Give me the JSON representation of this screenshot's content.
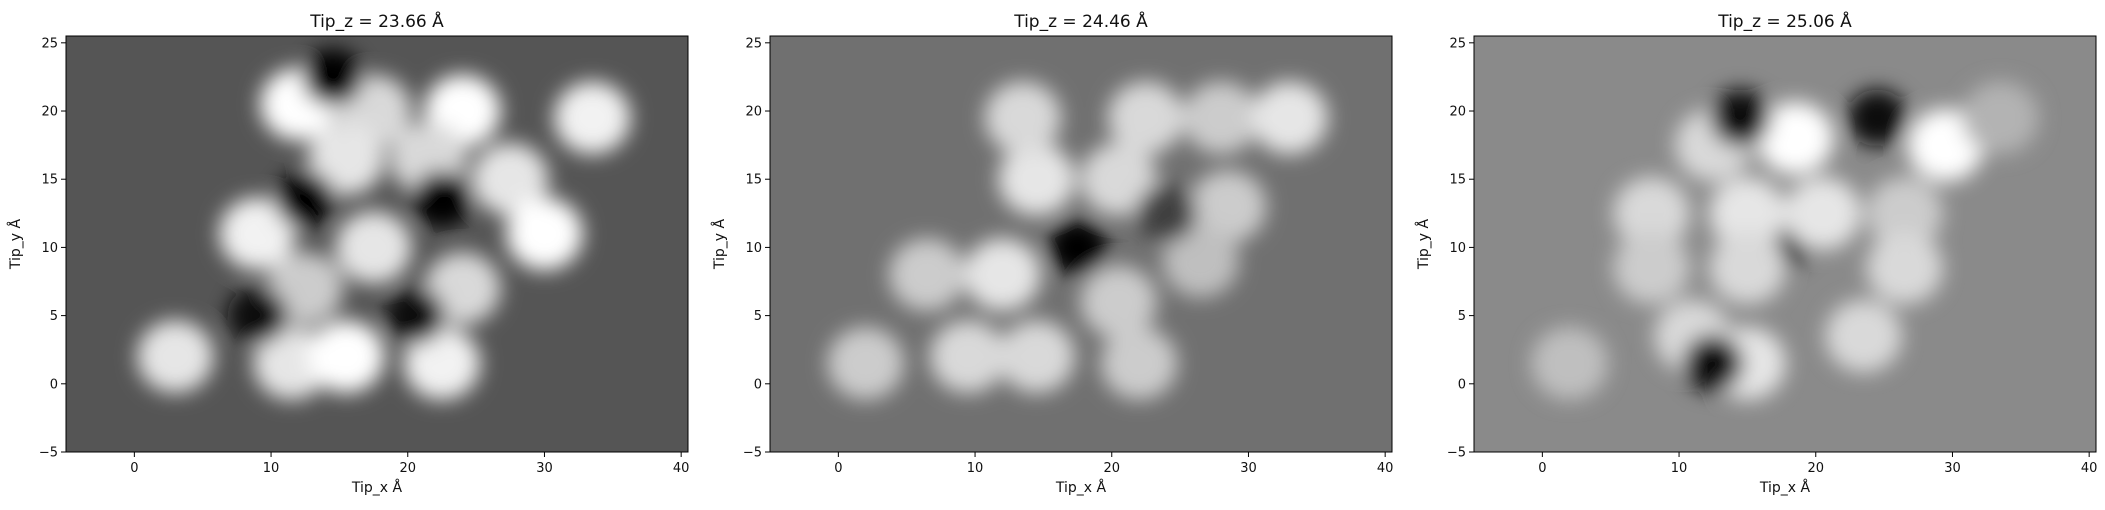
{
  "chart_data": [
    {
      "type": "heatmap",
      "title": "Tip_z = 23.66 Å",
      "xlabel": "Tip_x Å",
      "ylabel": "Tip_y Å",
      "xlim": [
        -5,
        40.5
      ],
      "ylim": [
        -5,
        25.5
      ],
      "xticks": [
        0,
        10,
        20,
        30,
        40
      ],
      "yticks": [
        -5,
        0,
        5,
        10,
        15,
        20,
        25
      ],
      "colormap": "gray",
      "background": "#555555",
      "grid": false,
      "features": [
        {
          "x": 12.0,
          "y": 20.5,
          "shade": 1.0
        },
        {
          "x": 17.5,
          "y": 20.0,
          "shade": 0.85
        },
        {
          "x": 24.0,
          "y": 20.0,
          "shade": 1.0
        },
        {
          "x": 33.5,
          "y": 19.5,
          "shade": 0.95
        },
        {
          "x": 15.5,
          "y": 16.5,
          "shade": 0.9
        },
        {
          "x": 21.5,
          "y": 16.5,
          "shade": 0.85
        },
        {
          "x": 27.5,
          "y": 15.0,
          "shade": 0.9
        },
        {
          "x": 9.0,
          "y": 11.0,
          "shade": 0.95
        },
        {
          "x": 17.5,
          "y": 10.0,
          "shade": 0.9
        },
        {
          "x": 30.0,
          "y": 11.0,
          "shade": 1.0
        },
        {
          "x": 12.5,
          "y": 7.0,
          "shade": 0.8
        },
        {
          "x": 24.0,
          "y": 7.0,
          "shade": 0.85
        },
        {
          "x": 3.0,
          "y": 2.0,
          "shade": 0.9
        },
        {
          "x": 11.5,
          "y": 1.5,
          "shade": 0.9
        },
        {
          "x": 15.5,
          "y": 2.0,
          "shade": 1.0
        },
        {
          "x": 22.5,
          "y": 1.5,
          "shade": 0.95
        },
        {
          "x": 12.5,
          "y": 13.5,
          "shade": 0.0
        },
        {
          "x": 22.5,
          "y": 13.5,
          "shade": 0.0
        },
        {
          "x": 14.5,
          "y": 22.5,
          "shade": 0.0
        },
        {
          "x": 9.0,
          "y": 5.0,
          "shade": 0.05
        },
        {
          "x": 20.5,
          "y": 5.0,
          "shade": 0.05
        }
      ]
    },
    {
      "type": "heatmap",
      "title": "Tip_z = 24.46 Å",
      "xlabel": "Tip_x Å",
      "ylabel": "Tip_y Å",
      "xlim": [
        -5,
        40.5
      ],
      "ylim": [
        -5,
        25.5
      ],
      "xticks": [
        0,
        10,
        20,
        30,
        40
      ],
      "yticks": [
        -5,
        0,
        5,
        10,
        15,
        20,
        25
      ],
      "colormap": "gray",
      "background": "#707070",
      "grid": false,
      "features": [
        {
          "x": 17.5,
          "y": 10.0,
          "shade": 0.0
        },
        {
          "x": 14.5,
          "y": 15.0,
          "shade": 0.9
        },
        {
          "x": 20.5,
          "y": 15.0,
          "shade": 0.85
        },
        {
          "x": 12.0,
          "y": 8.0,
          "shade": 0.9
        },
        {
          "x": 20.5,
          "y": 6.0,
          "shade": 0.8
        },
        {
          "x": 13.5,
          "y": 19.5,
          "shade": 0.85
        },
        {
          "x": 22.5,
          "y": 19.5,
          "shade": 0.85
        },
        {
          "x": 28.0,
          "y": 19.5,
          "shade": 0.8
        },
        {
          "x": 33.0,
          "y": 19.5,
          "shade": 0.9
        },
        {
          "x": 28.5,
          "y": 13.0,
          "shade": 0.8
        },
        {
          "x": 26.5,
          "y": 9.0,
          "shade": 0.75
        },
        {
          "x": 6.5,
          "y": 8.0,
          "shade": 0.8
        },
        {
          "x": 2.0,
          "y": 1.5,
          "shade": 0.8
        },
        {
          "x": 9.5,
          "y": 2.0,
          "shade": 0.85
        },
        {
          "x": 14.5,
          "y": 2.0,
          "shade": 0.85
        },
        {
          "x": 22.0,
          "y": 1.5,
          "shade": 0.8
        },
        {
          "x": 24.0,
          "y": 12.5,
          "shade": 0.25
        }
      ]
    },
    {
      "type": "heatmap",
      "title": "Tip_z = 25.06 Å",
      "xlabel": "Tip_x Å",
      "ylabel": "Tip_y Å",
      "xlim": [
        -5,
        40.5
      ],
      "ylim": [
        -5,
        25.5
      ],
      "xticks": [
        0,
        10,
        20,
        30,
        40
      ],
      "yticks": [
        -5,
        0,
        5,
        10,
        15,
        20,
        25
      ],
      "colormap": "gray",
      "background": "#8a8a8a",
      "grid": false,
      "features": [
        {
          "x": 17.5,
          "y": 10.5,
          "shade": 0.0
        },
        {
          "x": 18.5,
          "y": 18.0,
          "shade": 1.0
        },
        {
          "x": 29.5,
          "y": 17.5,
          "shade": 1.0
        },
        {
          "x": 12.5,
          "y": 17.5,
          "shade": 0.85
        },
        {
          "x": 15.0,
          "y": 12.5,
          "shade": 0.9
        },
        {
          "x": 20.5,
          "y": 12.5,
          "shade": 0.9
        },
        {
          "x": 8.0,
          "y": 12.5,
          "shade": 0.85
        },
        {
          "x": 8.0,
          "y": 8.5,
          "shade": 0.8
        },
        {
          "x": 15.0,
          "y": 8.5,
          "shade": 0.85
        },
        {
          "x": 26.5,
          "y": 12.5,
          "shade": 0.8
        },
        {
          "x": 26.5,
          "y": 8.5,
          "shade": 0.85
        },
        {
          "x": 11.0,
          "y": 3.5,
          "shade": 0.85
        },
        {
          "x": 15.0,
          "y": 1.5,
          "shade": 0.9
        },
        {
          "x": 23.5,
          "y": 3.5,
          "shade": 0.85
        },
        {
          "x": 2.0,
          "y": 1.5,
          "shade": 0.75
        },
        {
          "x": 33.5,
          "y": 19.5,
          "shade": 0.7
        },
        {
          "x": 14.5,
          "y": 19.5,
          "shade": 0.05
        },
        {
          "x": 24.5,
          "y": 19.5,
          "shade": 0.05
        },
        {
          "x": 12.5,
          "y": 1.5,
          "shade": 0.05
        }
      ]
    }
  ]
}
